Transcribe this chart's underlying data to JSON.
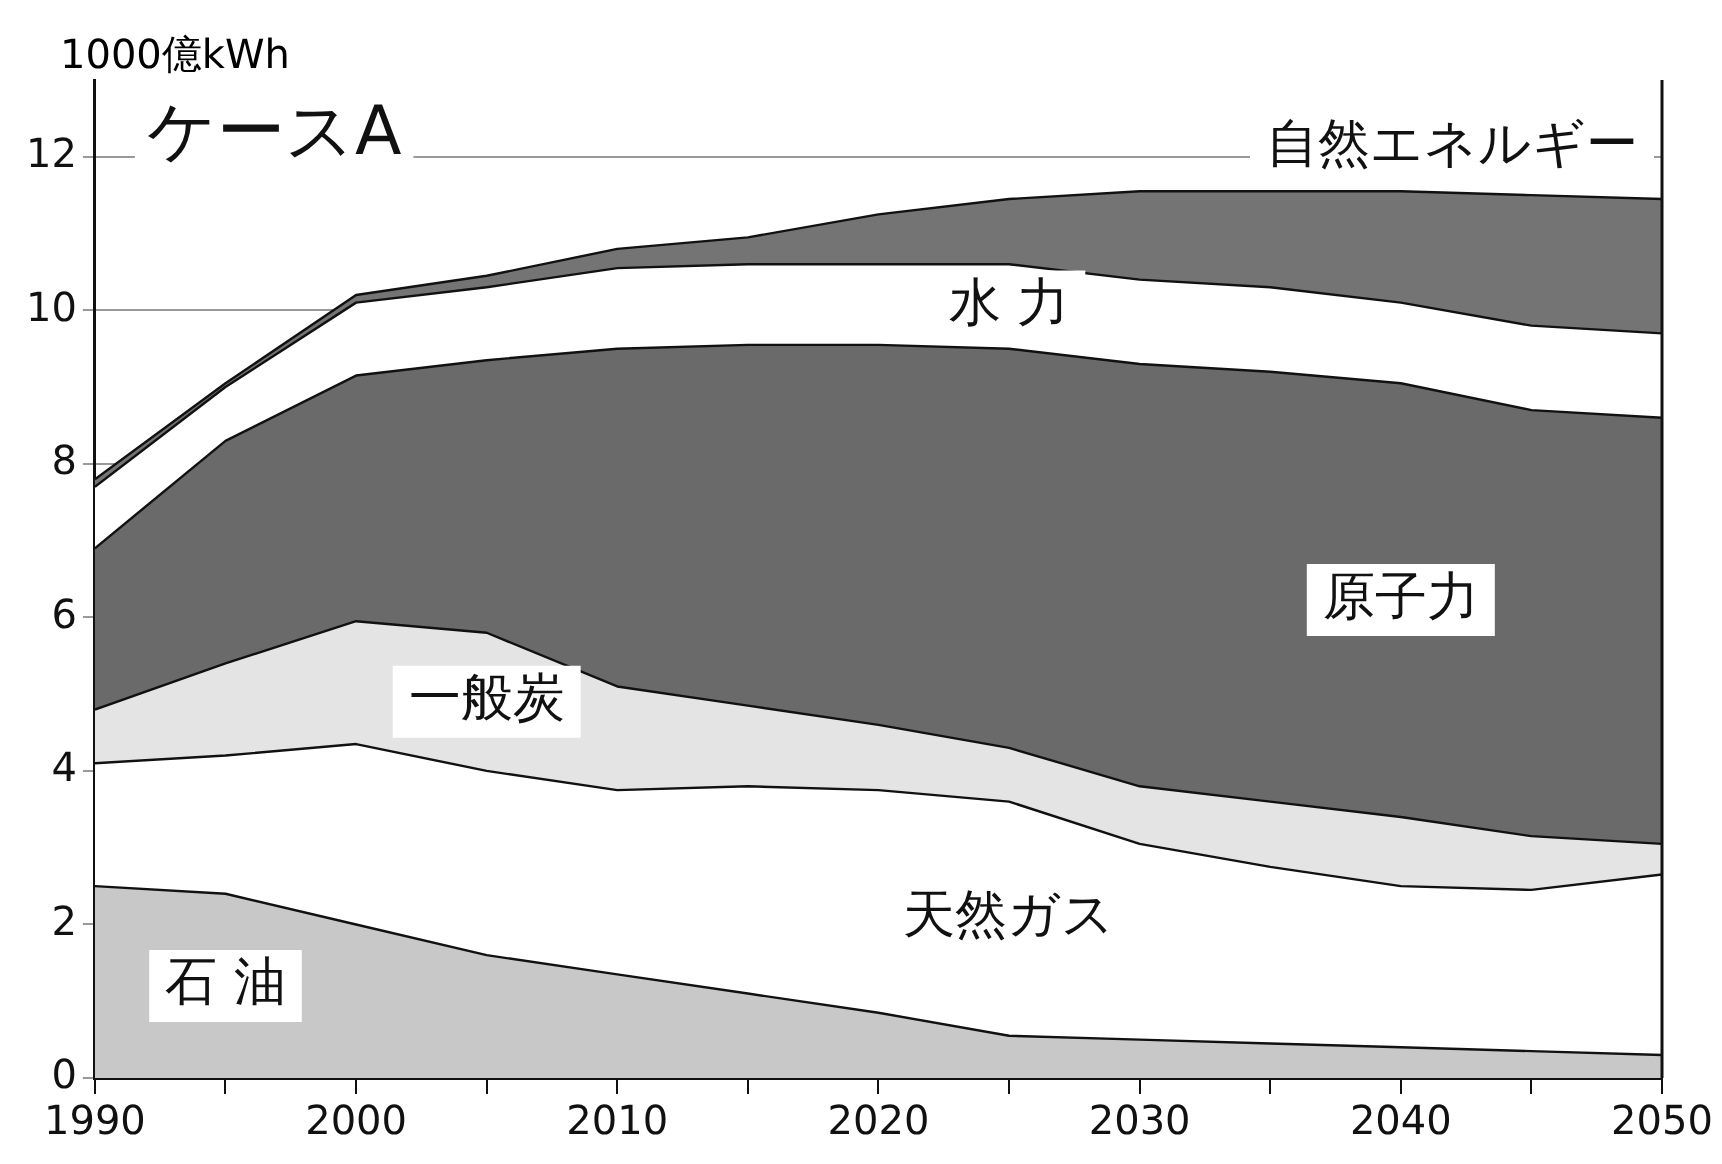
{
  "chart_data": {
    "type": "area",
    "title": "ケースA",
    "ylabel": "1000億kWh",
    "stacked": true,
    "x": [
      1990,
      1995,
      2000,
      2005,
      2010,
      2015,
      2020,
      2025,
      2030,
      2035,
      2040,
      2045,
      2050
    ],
    "xlim": [
      1990,
      2050
    ],
    "xticks": [
      1990,
      {
        "value": 1995,
        "label": null
      },
      2000,
      {
        "value": 2005,
        "label": null
      },
      2010,
      {
        "value": 2015,
        "label": null
      },
      2020,
      {
        "value": 2025,
        "label": null
      },
      2030,
      {
        "value": 2035,
        "label": null
      },
      2040,
      {
        "value": 2045,
        "label": null
      },
      2050
    ],
    "ylim": [
      0,
      13
    ],
    "yticks": [
      0,
      2,
      4,
      6,
      8,
      10,
      12
    ],
    "grid": "y",
    "legend": false,
    "series": [
      {
        "name": "石 油",
        "color": "#c8c8c8",
        "values": [
          2.5,
          2.4,
          2.0,
          1.6,
          1.35,
          1.1,
          0.85,
          0.55,
          0.5,
          0.45,
          0.4,
          0.35,
          0.3
        ]
      },
      {
        "name": "天然ガス",
        "color": "#ffffff",
        "values": [
          1.6,
          1.8,
          2.35,
          2.4,
          2.4,
          2.7,
          2.9,
          3.05,
          2.55,
          2.3,
          2.1,
          2.1,
          2.35
        ]
      },
      {
        "name": "一般炭",
        "color": "#e4e4e4",
        "values": [
          0.7,
          1.2,
          1.6,
          1.8,
          1.35,
          1.05,
          0.85,
          0.7,
          0.75,
          0.85,
          0.9,
          0.7,
          0.4
        ]
      },
      {
        "name": "原子力",
        "color": "#6a6a6a",
        "values": [
          2.1,
          2.9,
          3.2,
          3.55,
          4.4,
          4.7,
          4.95,
          5.2,
          5.5,
          5.6,
          5.65,
          5.55,
          5.55
        ]
      },
      {
        "name": "水 力",
        "color": "#ffffff",
        "values": [
          0.8,
          0.7,
          0.95,
          0.95,
          1.05,
          1.05,
          1.05,
          1.1,
          1.1,
          1.1,
          1.05,
          1.1,
          1.1
        ]
      },
      {
        "name": "自然エネルギー",
        "color": "#747474",
        "values": [
          0.1,
          0.05,
          0.1,
          0.15,
          0.25,
          0.35,
          0.65,
          0.85,
          1.15,
          1.25,
          1.45,
          1.7,
          1.75
        ]
      }
    ]
  }
}
